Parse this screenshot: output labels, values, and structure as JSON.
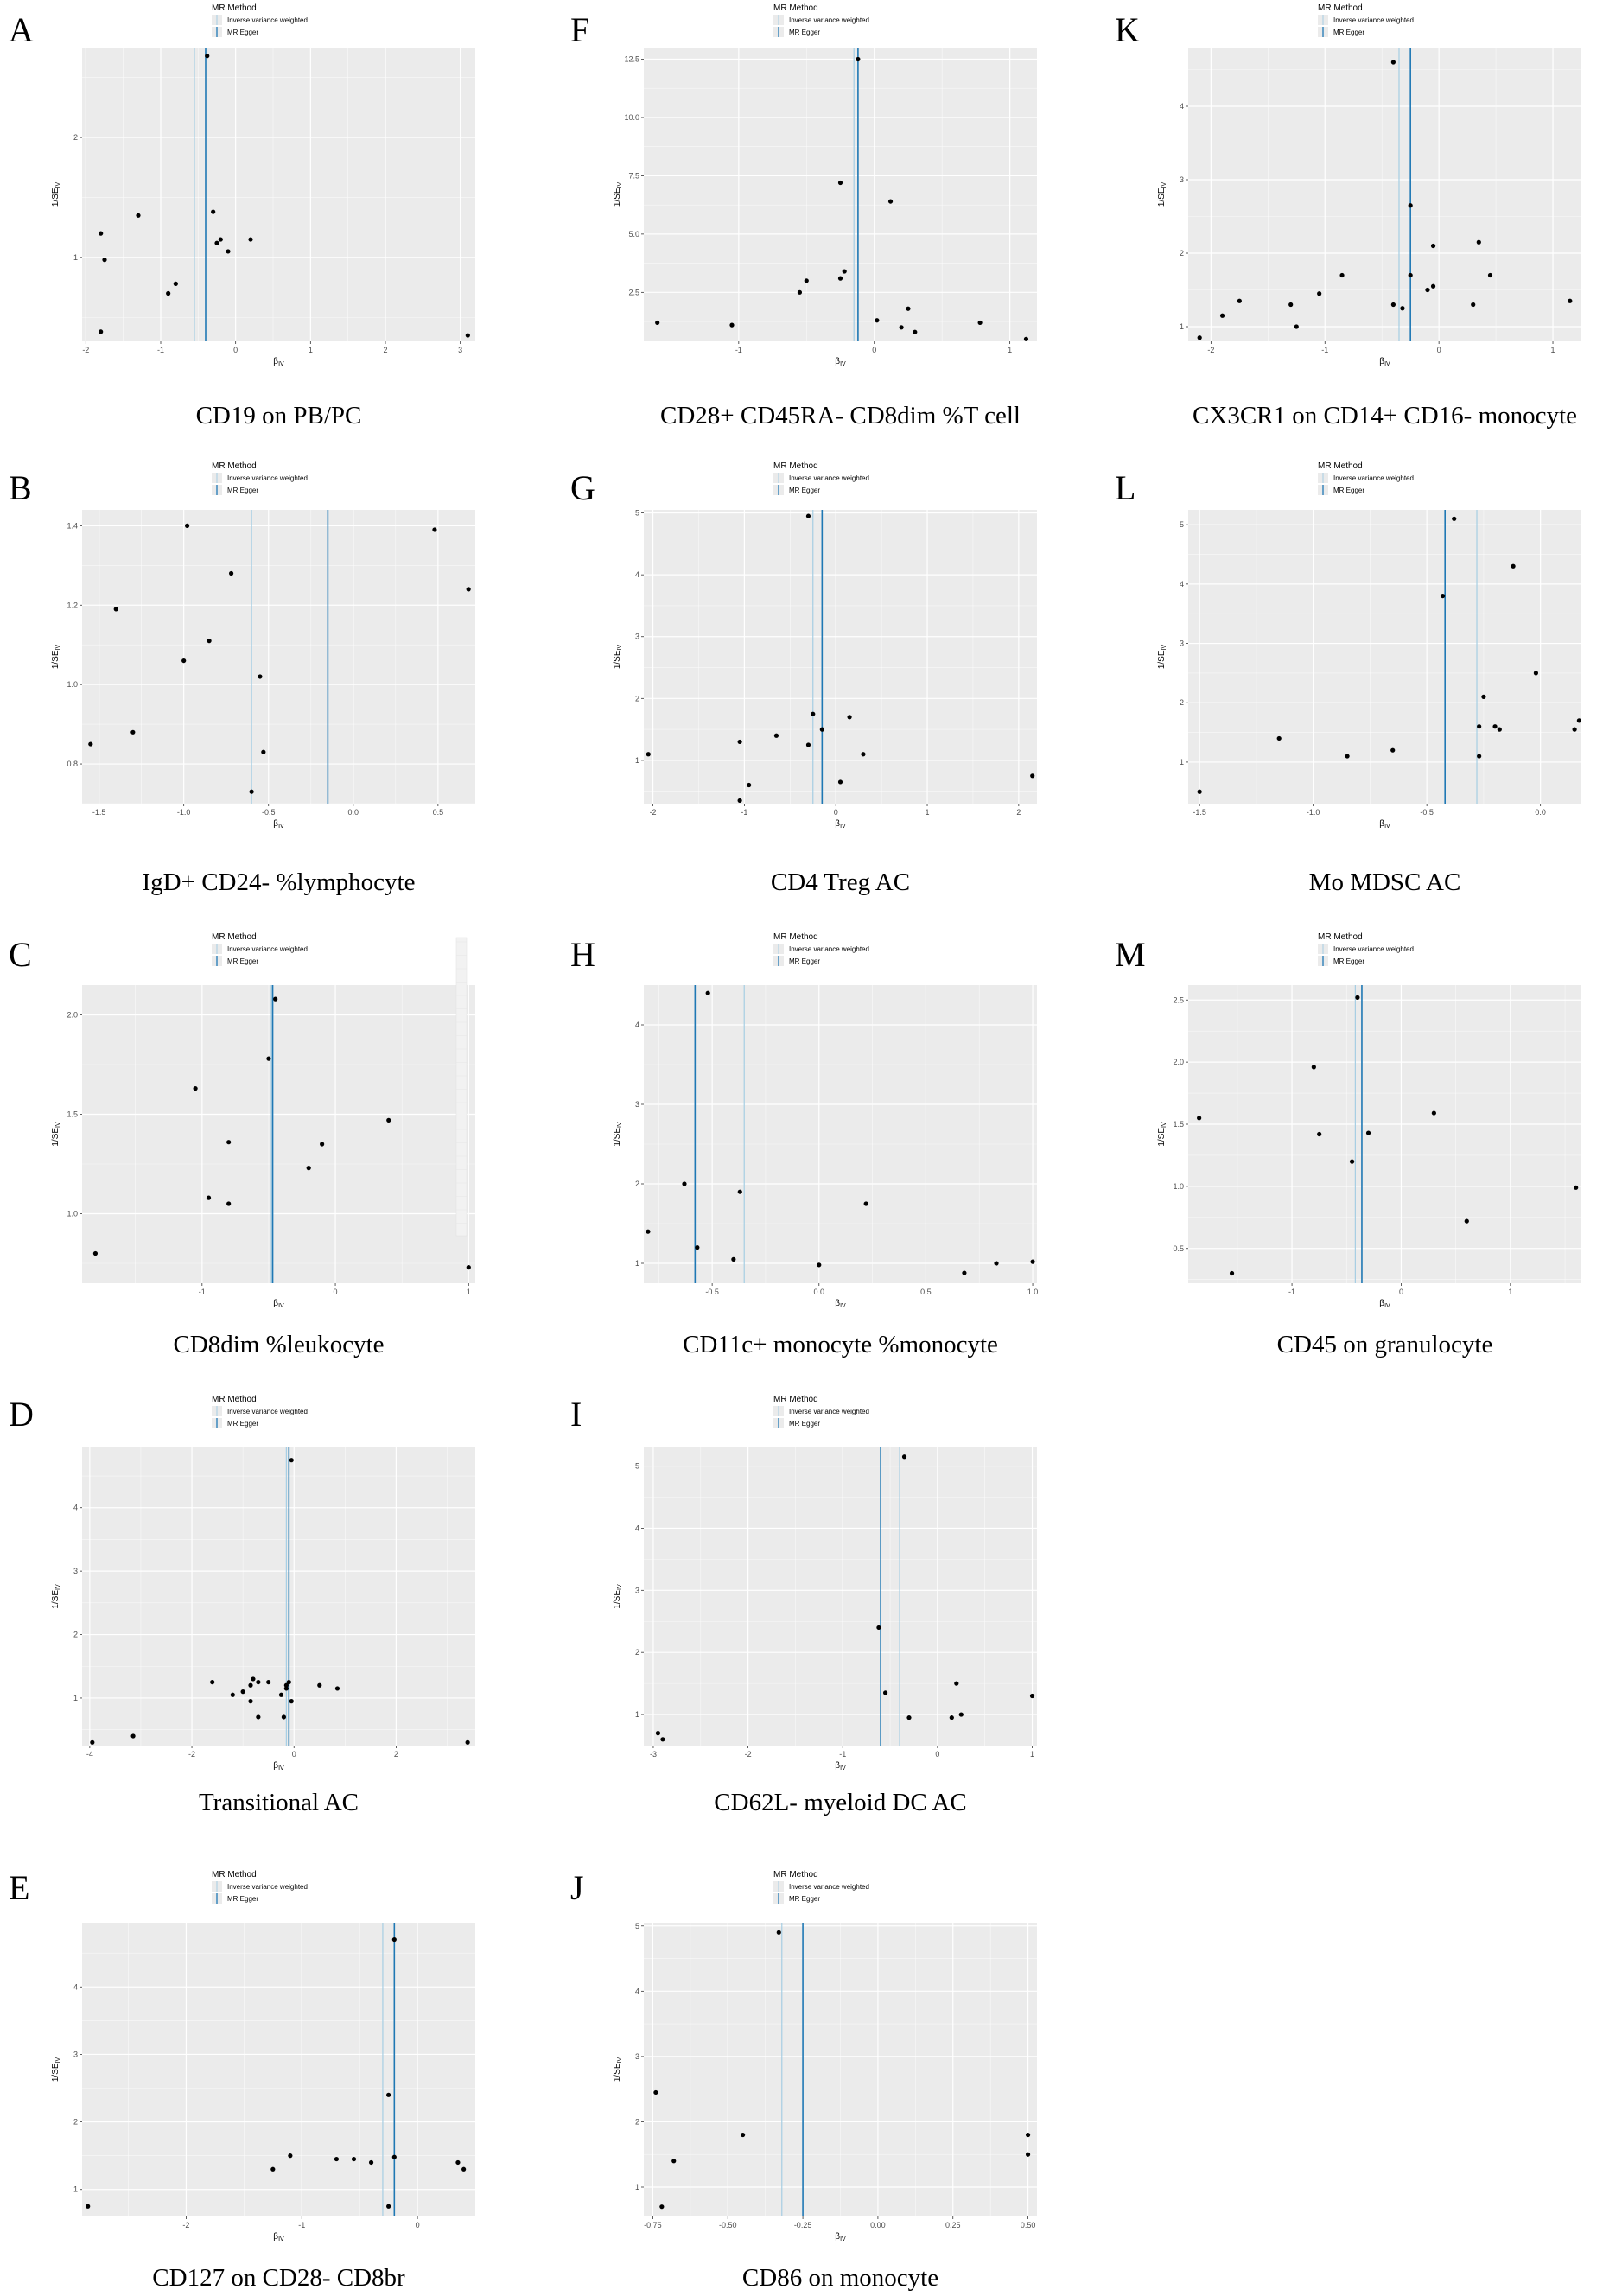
{
  "legend": {
    "title": "MR Method",
    "entries": [
      "Inverse variance weighted",
      "MR Egger"
    ]
  },
  "colors": {
    "panel_background": "#ebebeb",
    "gridline": "#ffffff",
    "point": "#000000",
    "ivw_line": "#a6cee3",
    "egger_line": "#1f78b4"
  },
  "axis_labels": {
    "x": "βIV",
    "y": "1/SEIV"
  },
  "chart_data": [
    {
      "letter": "A",
      "caption": "CD19 on PB/PC",
      "type": "scatter",
      "xlim": [
        -2.05,
        3.2
      ],
      "ylim": [
        0.3,
        2.75
      ],
      "xticks": [
        -2,
        -1,
        0,
        1,
        2,
        3
      ],
      "yticks": [
        1,
        2
      ],
      "ivw": -0.55,
      "egger": -0.4,
      "x": [
        -0.38,
        -1.3,
        -1.8,
        -1.75,
        -0.9,
        -0.8,
        -0.2,
        -0.25,
        -0.3,
        -0.1,
        0.2,
        -1.8,
        3.1
      ],
      "y": [
        2.68,
        1.35,
        1.2,
        0.98,
        0.7,
        0.78,
        1.15,
        1.12,
        1.38,
        1.05,
        1.15,
        0.38,
        0.35
      ]
    },
    {
      "letter": "F",
      "caption": "CD28+ CD45RA- CD8dim %T cell",
      "type": "scatter",
      "xlim": [
        -1.7,
        1.2
      ],
      "ylim": [
        0.4,
        13.0
      ],
      "xticks": [
        -1,
        0,
        1
      ],
      "yticks": [
        2.5,
        5.0,
        7.5,
        10.0,
        12.5
      ],
      "ivw": -0.15,
      "egger": -0.12,
      "x": [
        -0.12,
        -0.25,
        0.12,
        -0.5,
        -0.55,
        -0.22,
        -0.25,
        0.25,
        0.02,
        0.2,
        0.3,
        0.78,
        -1.6,
        -1.05,
        1.12
      ],
      "y": [
        12.5,
        7.2,
        6.4,
        3.0,
        2.5,
        3.4,
        3.1,
        1.8,
        1.3,
        1.0,
        0.8,
        1.2,
        1.2,
        1.1,
        0.5
      ]
    },
    {
      "letter": "K",
      "caption": "CX3CR1 on CD14+ CD16- monocyte",
      "type": "scatter",
      "xlim": [
        -2.2,
        1.25
      ],
      "ylim": [
        0.8,
        4.8
      ],
      "xticks": [
        -2,
        -1,
        0,
        1
      ],
      "yticks": [
        1,
        2,
        3,
        4
      ],
      "ivw": -0.35,
      "egger": -0.25,
      "x": [
        -0.4,
        -0.25,
        -0.05,
        -0.25,
        -0.1,
        -0.05,
        -0.4,
        -0.32,
        0.35,
        0.3,
        0.45,
        -0.85,
        -1.05,
        -1.3,
        -1.25,
        -1.75,
        -1.9,
        -2.1,
        1.15
      ],
      "y": [
        4.6,
        2.65,
        2.1,
        1.7,
        1.5,
        1.55,
        1.3,
        1.25,
        2.15,
        1.3,
        1.7,
        1.7,
        1.45,
        1.3,
        1.0,
        1.35,
        1.15,
        0.85,
        1.35
      ]
    },
    {
      "letter": "B",
      "caption": "IgD+ CD24- %lymphocyte",
      "type": "scatter",
      "xlim": [
        -1.6,
        0.72
      ],
      "ylim": [
        0.7,
        1.44
      ],
      "xticks": [
        -1.5,
        -1.0,
        -0.5,
        0.0,
        0.5
      ],
      "yticks": [
        0.8,
        1.0,
        1.2,
        1.4
      ],
      "ivw": -0.6,
      "egger": -0.15,
      "x": [
        -0.98,
        -1.4,
        -0.72,
        -0.85,
        -1.0,
        -1.3,
        -1.55,
        -0.55,
        -0.53,
        -0.6,
        0.48,
        0.68
      ],
      "y": [
        1.4,
        1.19,
        1.28,
        1.11,
        1.06,
        0.88,
        0.85,
        1.02,
        0.83,
        0.73,
        1.39,
        1.24
      ]
    },
    {
      "letter": "G",
      "caption": "CD4 Treg AC",
      "type": "scatter",
      "xlim": [
        -2.1,
        2.2
      ],
      "ylim": [
        0.3,
        5.05
      ],
      "xticks": [
        -2,
        -1,
        0,
        1,
        2
      ],
      "yticks": [
        1,
        2,
        3,
        4,
        5
      ],
      "ivw": -0.25,
      "egger": -0.15,
      "x": [
        -0.3,
        -0.25,
        -0.15,
        -0.3,
        -1.05,
        -0.95,
        -0.65,
        -2.05,
        -1.05,
        0.05,
        0.15,
        0.3,
        2.15
      ],
      "y": [
        4.95,
        1.75,
        1.5,
        1.25,
        1.3,
        0.6,
        1.4,
        1.1,
        0.35,
        0.65,
        1.7,
        1.1,
        0.75
      ]
    },
    {
      "letter": "L",
      "caption": "Mo MDSC AC",
      "type": "scatter",
      "xlim": [
        -1.55,
        0.18
      ],
      "ylim": [
        0.3,
        5.25
      ],
      "xticks": [
        -1.5,
        -1.0,
        -0.5,
        0.0
      ],
      "yticks": [
        1,
        2,
        3,
        4,
        5
      ],
      "ivw": -0.28,
      "egger": -0.42,
      "x": [
        -0.38,
        -0.43,
        -0.12,
        -0.02,
        -0.25,
        -0.27,
        -0.2,
        -0.18,
        -0.27,
        0.15,
        0.17,
        -1.15,
        -0.85,
        -0.65,
        -1.5
      ],
      "y": [
        5.1,
        3.8,
        4.3,
        2.5,
        2.1,
        1.6,
        1.6,
        1.55,
        1.1,
        1.55,
        1.7,
        1.4,
        1.1,
        1.2,
        0.5
      ]
    },
    {
      "letter": "C",
      "caption": "CD8dim %leukocyte",
      "type": "scatter",
      "xlim": [
        -1.9,
        1.05
      ],
      "ylim": [
        0.65,
        2.15
      ],
      "xticks": [
        -1,
        0,
        1
      ],
      "yticks": [
        1.0,
        1.5,
        2.0
      ],
      "ivw": -0.48,
      "egger": -0.47,
      "x": [
        -0.45,
        -0.5,
        -1.05,
        -0.8,
        -0.1,
        0.4,
        -0.2,
        -0.95,
        -0.8,
        -1.8,
        1.0
      ],
      "y": [
        2.08,
        1.78,
        1.63,
        1.36,
        1.35,
        1.47,
        1.23,
        1.08,
        1.05,
        0.8,
        0.73
      ]
    },
    {
      "letter": "H",
      "caption": "CD11c+ monocyte %monocyte",
      "type": "scatter",
      "xlim": [
        -0.82,
        1.02
      ],
      "ylim": [
        0.75,
        4.5
      ],
      "xticks": [
        -0.5,
        0.0,
        0.5,
        1.0
      ],
      "yticks": [
        1,
        2,
        3,
        4
      ],
      "ivw": -0.35,
      "egger": -0.58,
      "x": [
        -0.52,
        -0.63,
        -0.8,
        -0.57,
        -0.4,
        -0.37,
        0.0,
        0.22,
        0.68,
        0.83,
        1.0
      ],
      "y": [
        4.4,
        2.0,
        1.4,
        1.2,
        1.05,
        1.9,
        0.98,
        1.75,
        0.88,
        1.0,
        1.02
      ]
    },
    {
      "letter": "M",
      "caption": "CD45 on granulocyte",
      "type": "scatter",
      "xlim": [
        -1.95,
        1.65
      ],
      "ylim": [
        0.22,
        2.62
      ],
      "xticks": [
        -1,
        0,
        1
      ],
      "yticks": [
        0.5,
        1.0,
        1.5,
        2.0,
        2.5
      ],
      "ivw": -0.42,
      "egger": -0.36,
      "x": [
        -0.4,
        -0.8,
        -1.85,
        -0.75,
        -0.45,
        -0.3,
        0.3,
        -1.55,
        1.6,
        0.6
      ],
      "y": [
        2.52,
        1.96,
        1.55,
        1.42,
        1.2,
        1.43,
        1.59,
        0.3,
        0.99,
        0.72
      ]
    },
    {
      "letter": "D",
      "caption": "Transitional AC",
      "type": "scatter",
      "xlim": [
        -4.15,
        3.55
      ],
      "ylim": [
        0.25,
        4.95
      ],
      "xticks": [
        -4,
        -2,
        0,
        2
      ],
      "yticks": [
        1,
        2,
        3,
        4
      ],
      "ivw": -0.15,
      "egger": -0.1,
      "x": [
        -0.05,
        -1.6,
        -0.8,
        -0.85,
        -1.0,
        -0.7,
        -0.5,
        -0.15,
        -0.1,
        -0.25,
        -0.15,
        0.5,
        0.85,
        -1.2,
        -0.05,
        -0.7,
        -0.2,
        -0.85,
        -3.15,
        -3.95,
        3.4
      ],
      "y": [
        4.75,
        1.25,
        1.3,
        1.2,
        1.1,
        1.25,
        1.25,
        1.2,
        1.25,
        1.05,
        1.15,
        1.2,
        1.15,
        1.05,
        0.95,
        0.7,
        0.7,
        0.95,
        0.4,
        0.3,
        0.3
      ]
    },
    {
      "letter": "I",
      "caption": "CD62L- myeloid DC AC",
      "type": "scatter",
      "xlim": [
        -3.1,
        1.05
      ],
      "ylim": [
        0.5,
        5.3
      ],
      "xticks": [
        -3,
        -2,
        -1,
        0,
        1
      ],
      "yticks": [
        1,
        2,
        3,
        4,
        5
      ],
      "ivw": -0.4,
      "egger": -0.6,
      "x": [
        -0.35,
        -0.62,
        -0.55,
        -0.3,
        0.2,
        0.15,
        0.25,
        -2.95,
        -2.9,
        1.0
      ],
      "y": [
        5.15,
        2.4,
        1.35,
        0.95,
        1.5,
        0.95,
        1.0,
        0.7,
        0.6,
        1.3
      ]
    },
    {
      "letter": "E",
      "caption": "CD127 on CD28- CD8br",
      "type": "scatter",
      "xlim": [
        -2.9,
        0.5
      ],
      "ylim": [
        0.6,
        4.95
      ],
      "xticks": [
        -2,
        -1,
        0
      ],
      "yticks": [
        1,
        2,
        3,
        4
      ],
      "ivw": -0.3,
      "egger": -0.2,
      "x": [
        -0.2,
        -0.25,
        -1.1,
        -0.7,
        -0.55,
        -0.4,
        -0.2,
        0.35,
        -1.25,
        0.4,
        -0.25,
        -2.85
      ],
      "y": [
        4.7,
        2.4,
        1.5,
        1.45,
        1.45,
        1.4,
        1.48,
        1.4,
        1.3,
        1.3,
        0.75,
        0.75
      ]
    },
    {
      "letter": "J",
      "caption": "CD86 on monocyte",
      "type": "scatter",
      "xlim": [
        -0.78,
        0.53
      ],
      "ylim": [
        0.55,
        5.05
      ],
      "xticks": [
        -0.75,
        -0.5,
        -0.25,
        0.0,
        0.25,
        0.5
      ],
      "yticks": [
        1,
        2,
        3,
        4,
        5
      ],
      "ivw": -0.32,
      "egger": -0.25,
      "x": [
        -0.33,
        -0.74,
        -0.45,
        -0.68,
        -0.72,
        0.5,
        0.5
      ],
      "y": [
        4.9,
        2.45,
        1.8,
        1.4,
        0.7,
        1.8,
        1.5
      ]
    }
  ]
}
